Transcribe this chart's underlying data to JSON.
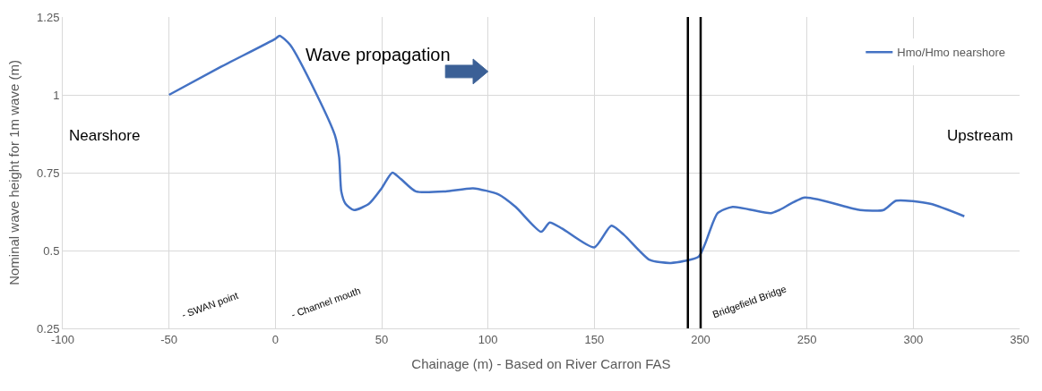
{
  "chart_data": {
    "type": "line",
    "xlabel": "Chainage (m) - Based on River Carron FAS",
    "ylabel": "Nominal wave height for 1m wave (m)",
    "x": [
      -50,
      -25.6,
      0,
      2,
      7,
      19.5,
      28,
      30,
      31,
      33,
      37,
      44,
      50,
      55,
      59,
      66,
      80,
      93,
      105,
      113,
      125,
      129,
      135,
      150,
      158,
      164,
      176,
      186,
      199,
      202,
      208,
      215,
      233,
      237,
      249,
      275,
      286,
      292,
      308,
      324
    ],
    "series": [
      {
        "name": "Hmo/Hmo nearshore",
        "color": "#4472c4",
        "values": [
          1.0,
          1.09,
          1.18,
          1.19,
          1.16,
          1.0,
          0.87,
          0.8,
          0.69,
          0.65,
          0.63,
          0.65,
          0.7,
          0.75,
          0.73,
          0.69,
          0.69,
          0.7,
          0.68,
          0.64,
          0.56,
          0.59,
          0.57,
          0.51,
          0.58,
          0.55,
          0.47,
          0.46,
          0.48,
          0.52,
          0.62,
          0.64,
          0.62,
          0.63,
          0.67,
          0.63,
          0.63,
          0.66,
          0.65,
          0.61
        ]
      }
    ],
    "xlim": [
      -100,
      350
    ],
    "xticks": [
      -100,
      -50,
      0,
      50,
      100,
      150,
      200,
      250,
      300,
      350
    ],
    "ylim": [
      0.25,
      1.25
    ],
    "yticks": [
      0.25,
      0.5,
      0.75,
      1,
      1.25
    ],
    "grid": true,
    "legend": "top right",
    "marker": "none",
    "line_style": "solid",
    "ref_lines": [
      {
        "axis": "x",
        "value": 194,
        "color": "#000000"
      },
      {
        "axis": "x",
        "value": 200,
        "color": "#000000"
      }
    ],
    "annotations": [
      "Wave propagation",
      "Nearshore",
      "Upstream",
      "- SWAN point",
      "- Channel mouth",
      "Bridgefield Bridge"
    ]
  }
}
